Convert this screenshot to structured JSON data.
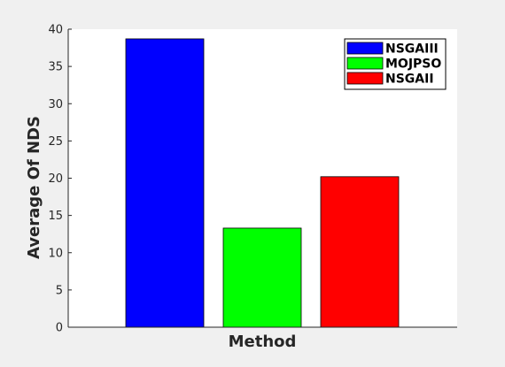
{
  "chart_data": {
    "type": "bar",
    "categories": [
      "NSGAIII",
      "MOJPSO",
      "NSGAII"
    ],
    "values": [
      38.7,
      13.3,
      20.2
    ],
    "colors": [
      "#0000ff",
      "#00ff00",
      "#ff0000"
    ],
    "title": "",
    "xlabel": "Method",
    "ylabel": "Average Of NDS",
    "ylim": [
      0,
      40
    ],
    "yticks": [
      0,
      5,
      10,
      15,
      20,
      25,
      30,
      35,
      40
    ],
    "grid": false,
    "legend": {
      "position": "top-right",
      "entries": [
        "NSGAIII",
        "MOJPSO",
        "NSGAII"
      ]
    }
  }
}
